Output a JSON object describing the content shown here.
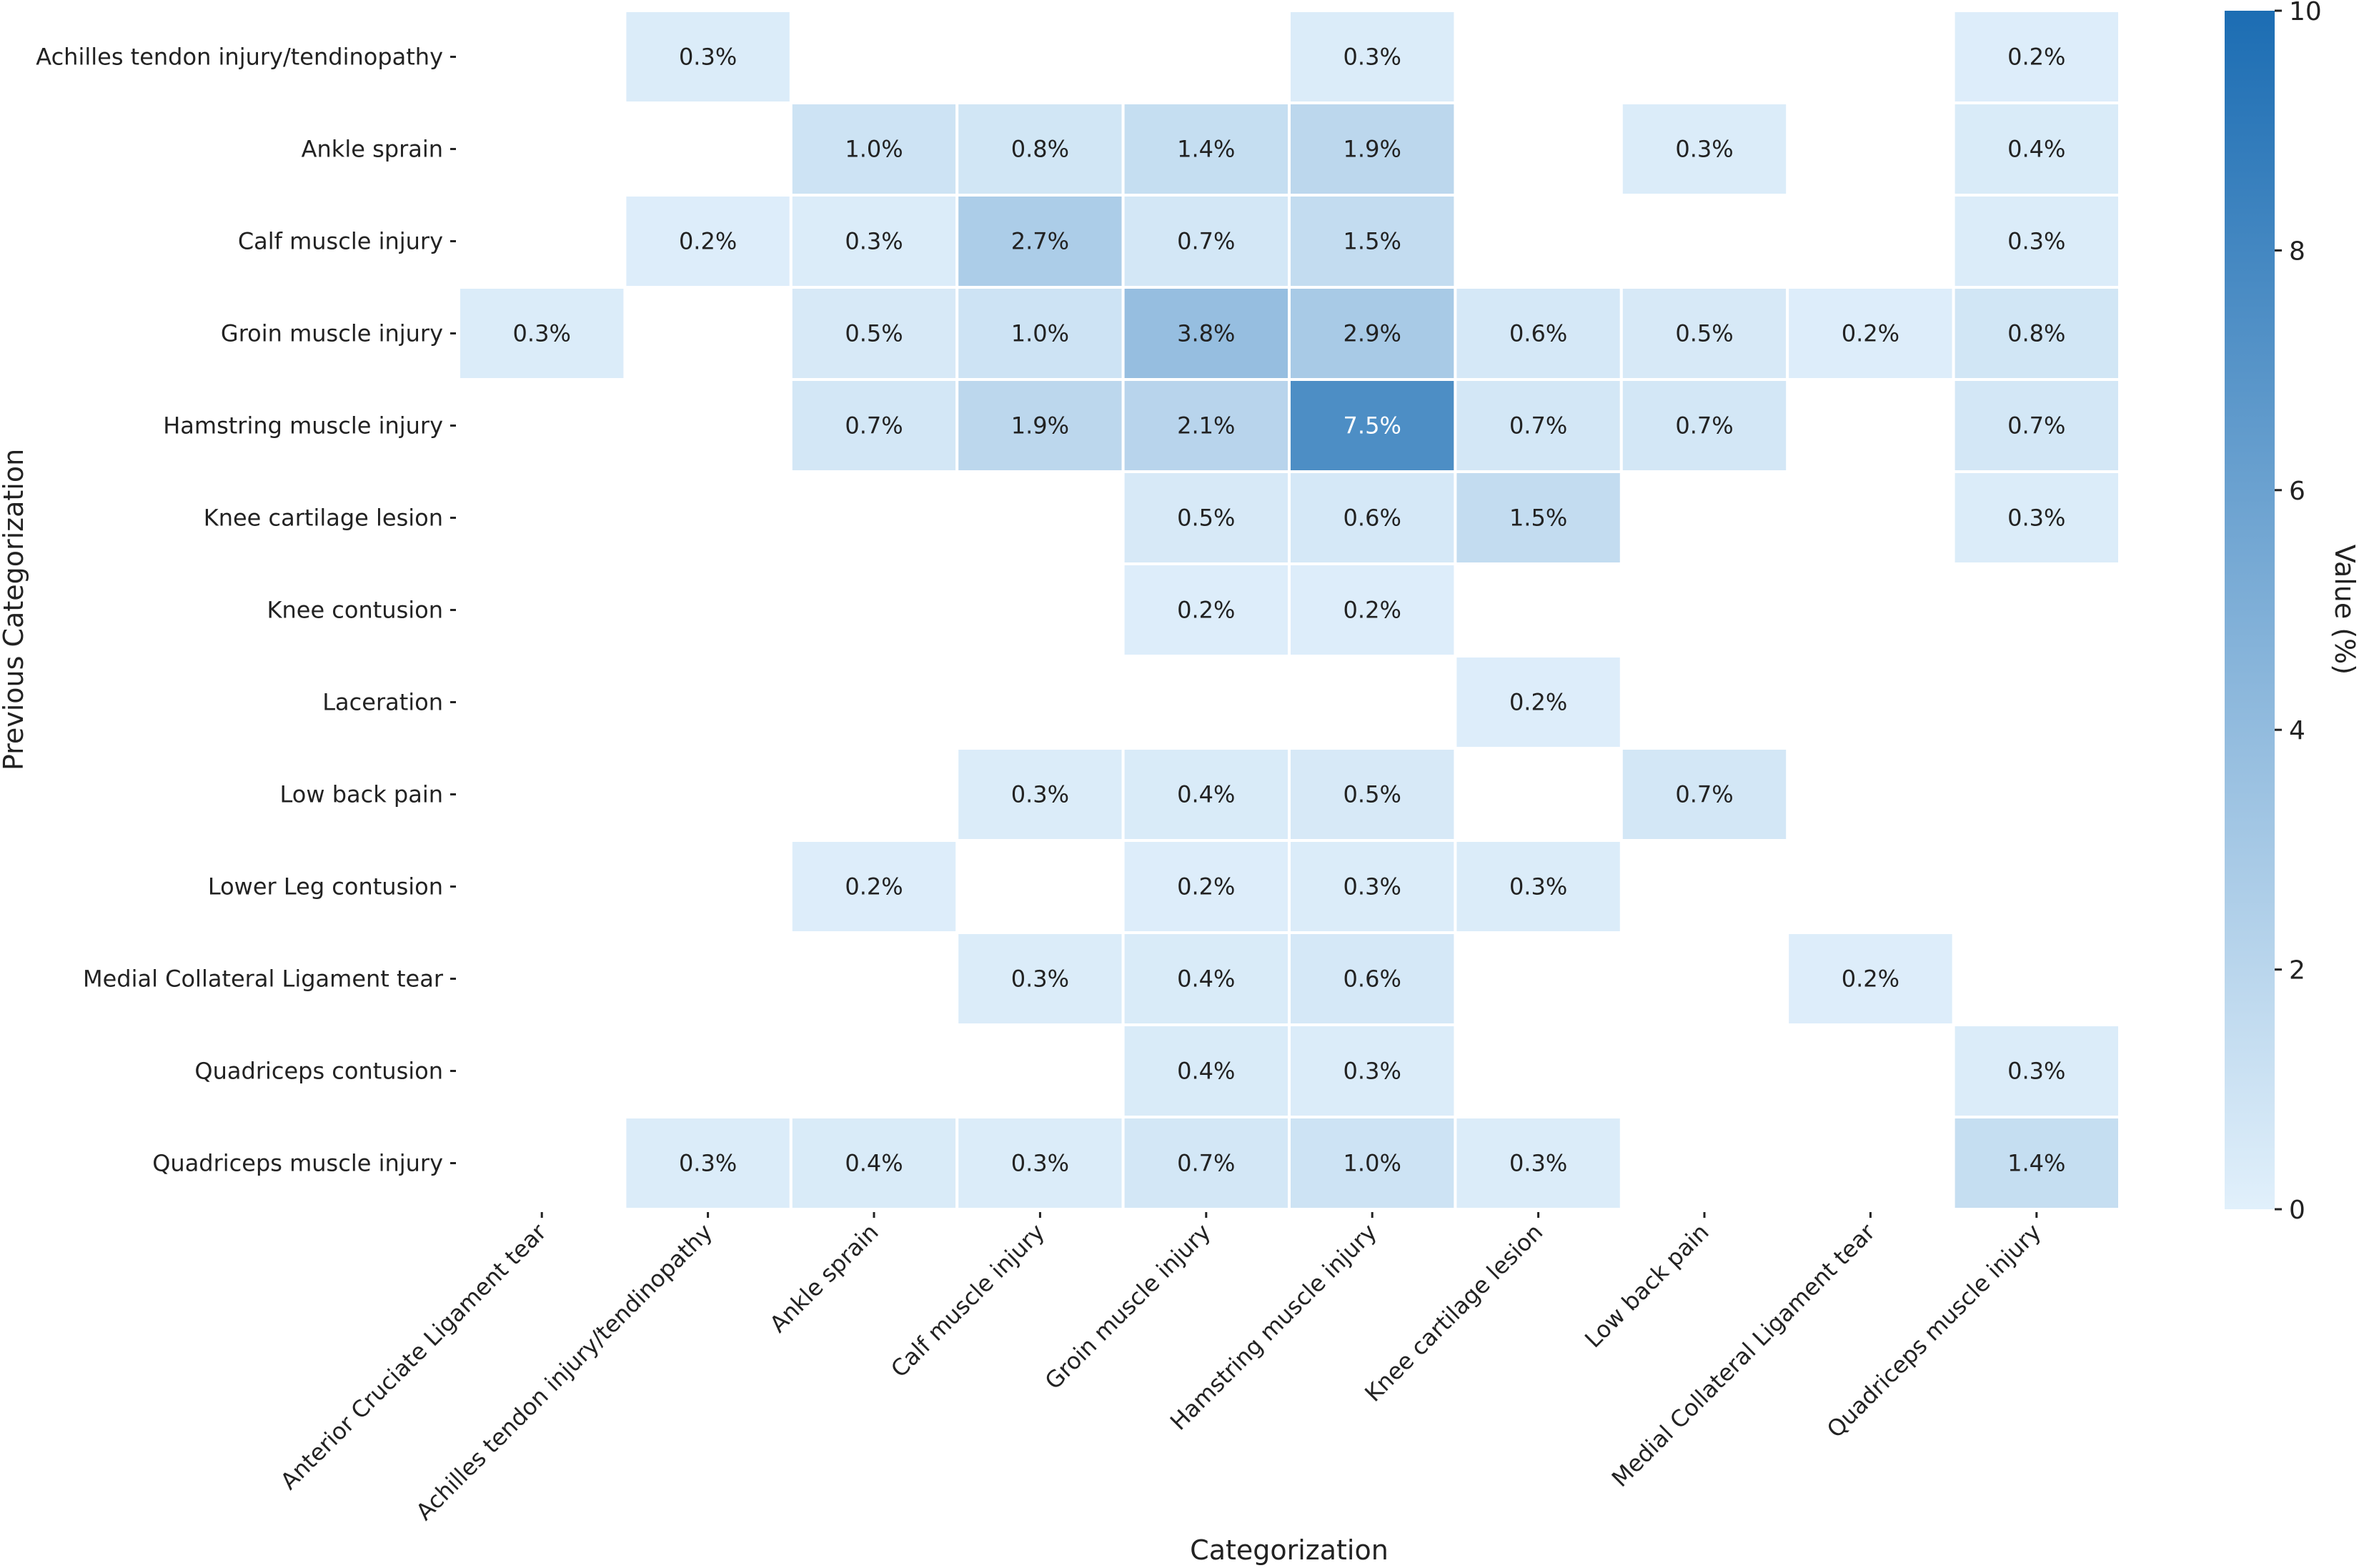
{
  "chart_data": {
    "type": "heatmap",
    "xlabel": "Categorization",
    "ylabel": "Previous Categorization",
    "colorbar_label": "Value (%)",
    "colorbar_range": [
      0,
      10
    ],
    "colorbar_ticks": [
      "0",
      "2",
      "4",
      "6",
      "8",
      "10"
    ],
    "colormap": {
      "low": "#e1f0fb",
      "high": "#1c6db3"
    },
    "x_categories": [
      "Anterior Cruciate Ligament tear",
      "Achilles tendon injury/tendinopathy",
      "Ankle sprain",
      "Calf muscle injury",
      "Groin muscle injury",
      "Hamstring muscle injury",
      "Knee cartilage lesion",
      "Low back pain",
      "Medial Collateral Ligament tear",
      "Quadriceps muscle injury"
    ],
    "y_categories": [
      "Achilles tendon injury/tendinopathy",
      "Ankle sprain",
      "Calf muscle injury",
      "Groin muscle injury",
      "Hamstring muscle injury",
      "Knee cartilage lesion",
      "Knee contusion",
      "Laceration",
      "Low back pain",
      "Lower Leg contusion",
      "Medial Collateral Ligament tear",
      "Quadriceps contusion",
      "Quadriceps muscle injury"
    ],
    "values": [
      [
        null,
        0.3,
        null,
        null,
        null,
        0.3,
        null,
        null,
        null,
        0.2
      ],
      [
        null,
        null,
        1.0,
        0.8,
        1.4,
        1.9,
        null,
        0.3,
        null,
        0.4
      ],
      [
        null,
        0.2,
        0.3,
        2.7,
        0.7,
        1.5,
        null,
        null,
        null,
        0.3
      ],
      [
        0.3,
        null,
        0.5,
        1.0,
        3.8,
        2.9,
        0.6,
        0.5,
        0.2,
        0.8
      ],
      [
        null,
        null,
        0.7,
        1.9,
        2.1,
        7.5,
        0.7,
        0.7,
        null,
        0.7
      ],
      [
        null,
        null,
        null,
        null,
        0.5,
        0.6,
        1.5,
        null,
        null,
        0.3
      ],
      [
        null,
        null,
        null,
        null,
        0.2,
        0.2,
        null,
        null,
        null,
        null
      ],
      [
        null,
        null,
        null,
        null,
        null,
        null,
        0.2,
        null,
        null,
        null
      ],
      [
        null,
        null,
        null,
        0.3,
        0.4,
        0.5,
        null,
        0.7,
        null,
        null
      ],
      [
        null,
        null,
        0.2,
        null,
        0.2,
        0.3,
        0.3,
        null,
        null,
        null
      ],
      [
        null,
        null,
        null,
        0.3,
        0.4,
        0.6,
        null,
        null,
        0.2,
        null
      ],
      [
        null,
        null,
        null,
        null,
        0.4,
        0.3,
        null,
        null,
        null,
        0.3
      ],
      [
        null,
        0.3,
        0.4,
        0.3,
        0.7,
        1.0,
        0.3,
        null,
        null,
        1.4
      ]
    ],
    "value_format": "%"
  }
}
